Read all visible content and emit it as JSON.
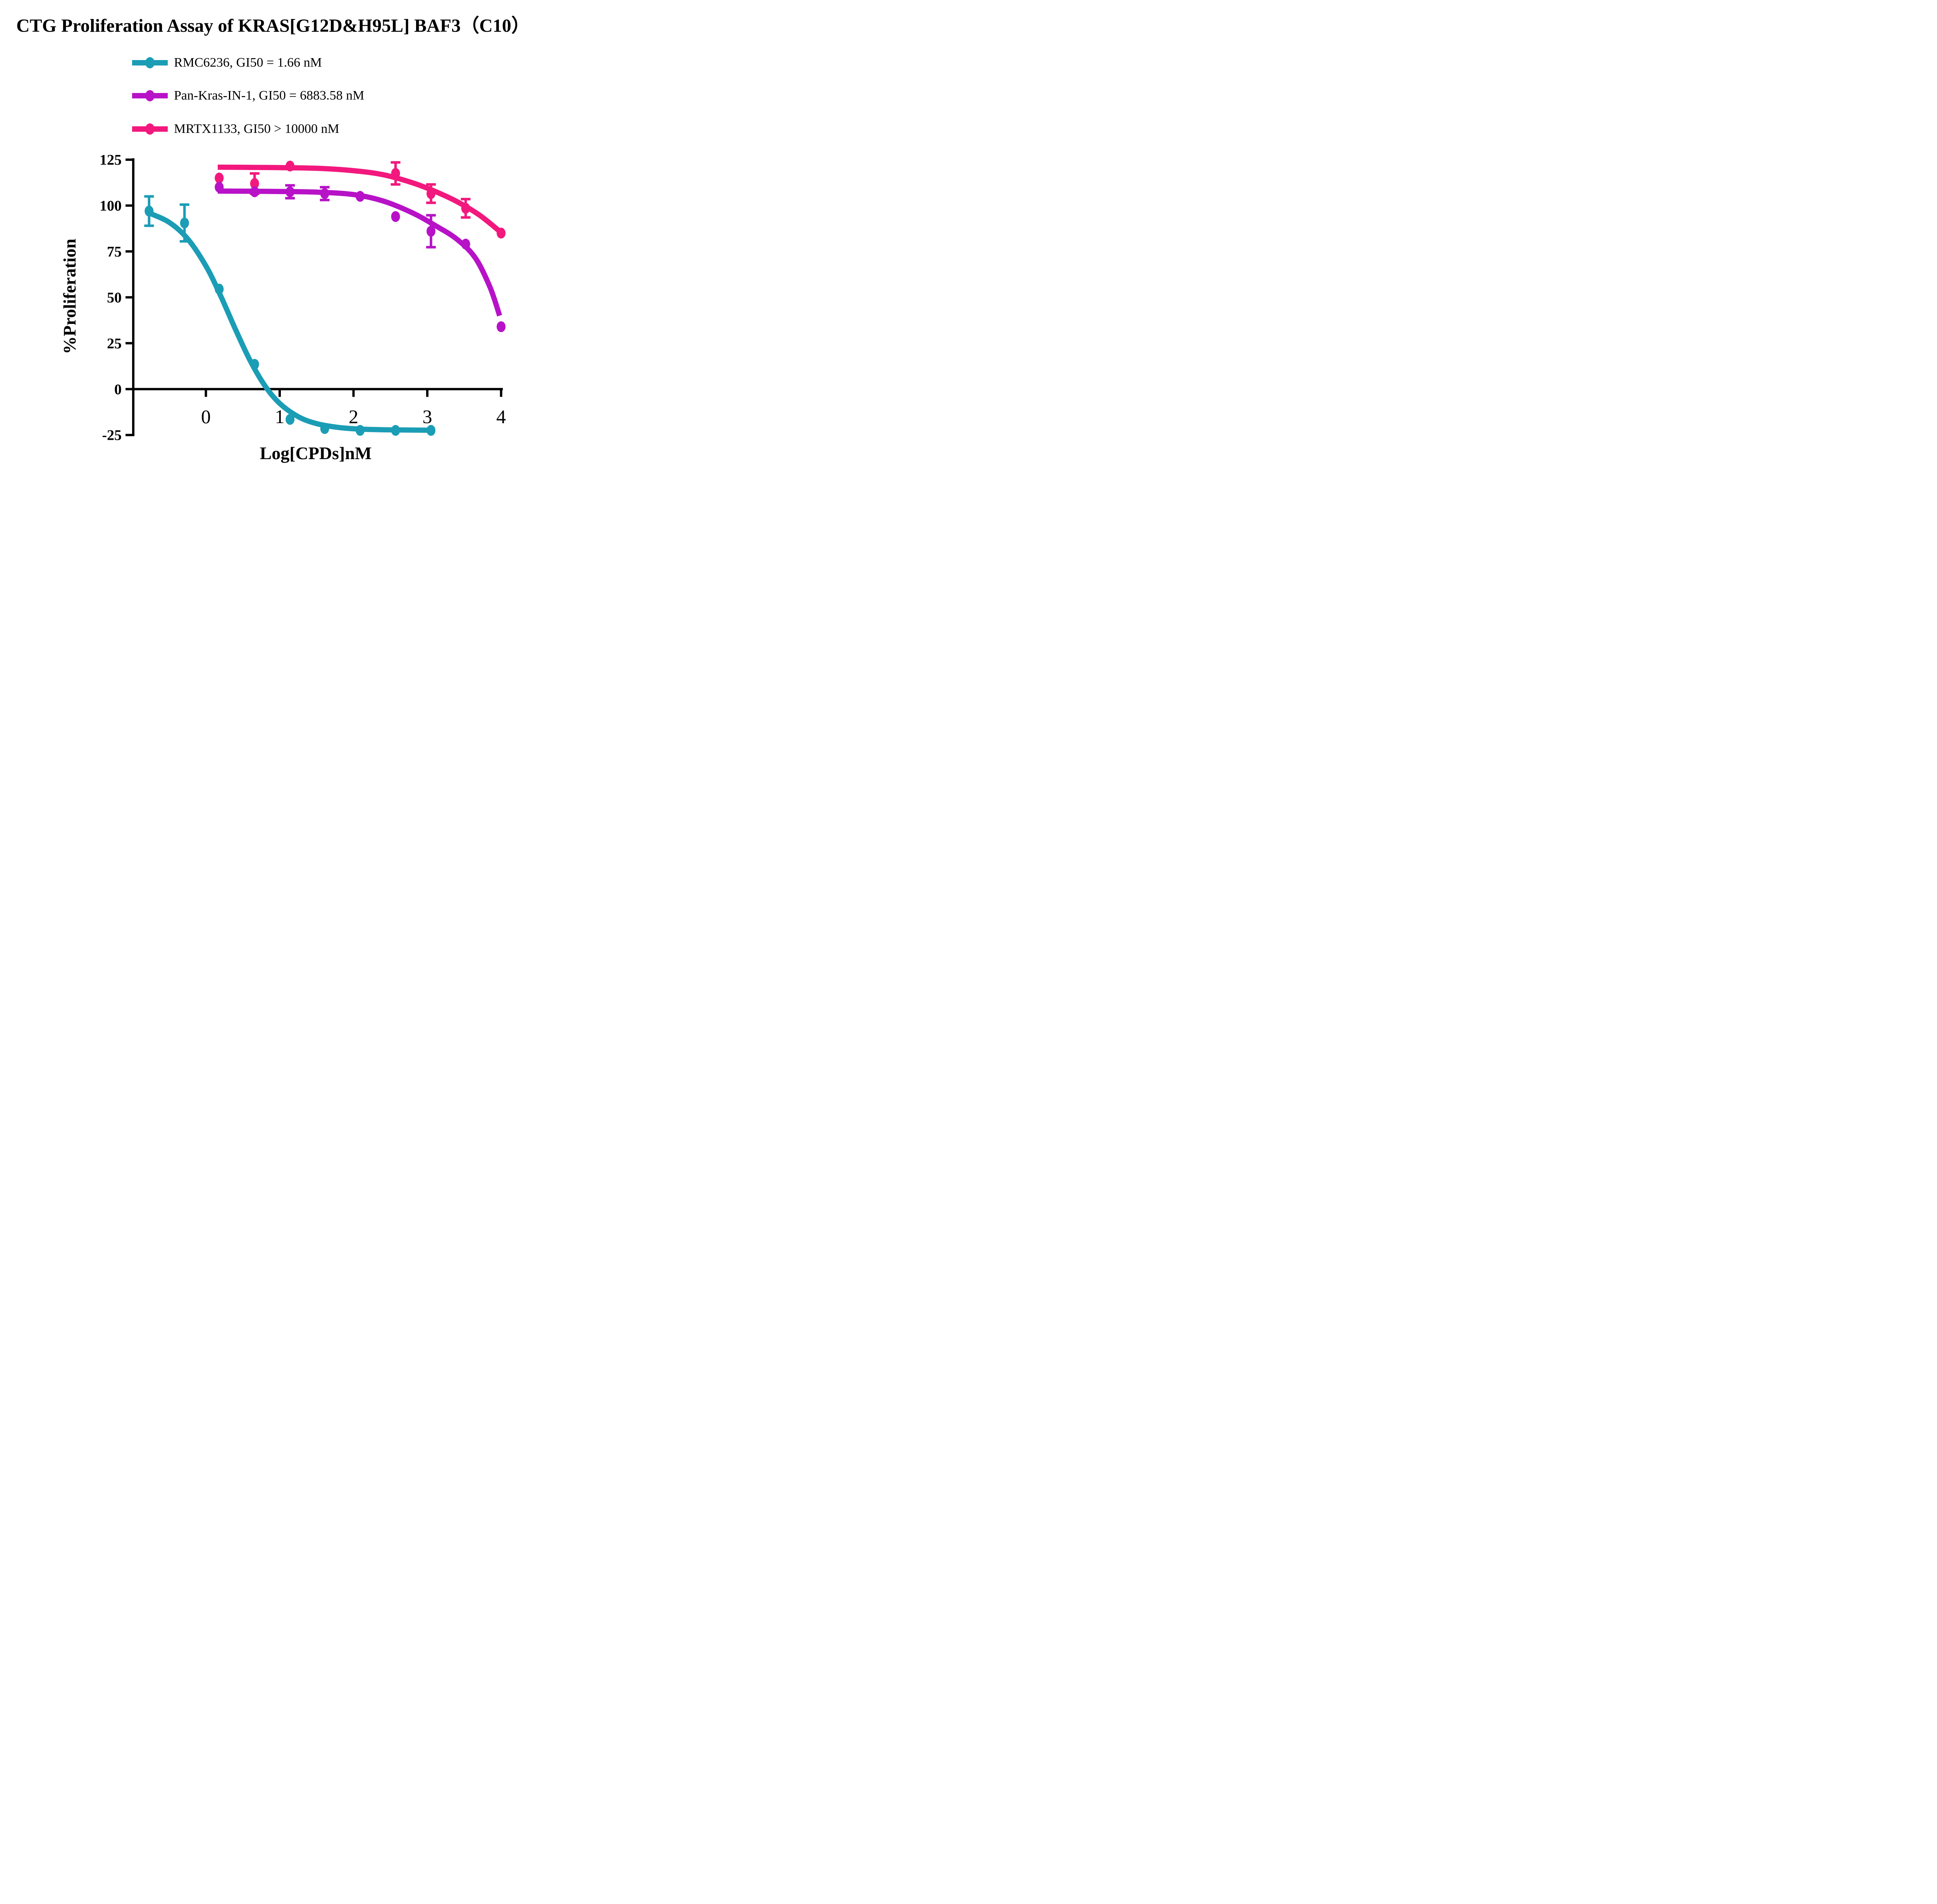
{
  "title": "CTG Proliferation Assay of KRAS[G12D&H95L] BAF3（C10）",
  "chart_data": {
    "type": "line",
    "title": "CTG Proliferation Assay of KRAS[G12D&H95L] BAF3（C10）",
    "xlabel": "Log[CPDs]nM",
    "ylabel": "%Proliferation",
    "xlim": [
      -1.0,
      4.0
    ],
    "ylim": [
      -25,
      125
    ],
    "x_ticks": [
      0,
      1,
      2,
      3,
      4
    ],
    "y_ticks": [
      125,
      100,
      75,
      50,
      25,
      0,
      -25
    ],
    "grid": false,
    "legend_position": "top-left",
    "series": [
      {
        "name": "RMC6236",
        "legend_label": "RMC6236, GI50 = 1.66 nM",
        "color": "#1B9DB5",
        "points": [
          {
            "x": -0.77,
            "y": 97,
            "err": 8
          },
          {
            "x": -0.29,
            "y": 90.5,
            "err": 10
          },
          {
            "x": 0.18,
            "y": 54.5
          },
          {
            "x": 0.66,
            "y": 13.5
          },
          {
            "x": 1.14,
            "y": -16.5
          },
          {
            "x": 1.61,
            "y": -21.5
          },
          {
            "x": 2.09,
            "y": -22.5
          },
          {
            "x": 2.57,
            "y": -22.5
          },
          {
            "x": 3.05,
            "y": -22.5
          }
        ],
        "curve": [
          [
            -0.78,
            96.1
          ],
          [
            -0.5,
            90.9
          ],
          [
            -0.25,
            82.0
          ],
          [
            0,
            67.1
          ],
          [
            0.2,
            50.8
          ],
          [
            0.4,
            32.6
          ],
          [
            0.6,
            15.5
          ],
          [
            0.8,
            1.8
          ],
          [
            1.0,
            -7.8
          ],
          [
            1.25,
            -15.0
          ],
          [
            1.5,
            -18.8
          ],
          [
            1.8,
            -20.9
          ],
          [
            2.1,
            -21.8
          ],
          [
            2.5,
            -22.2
          ],
          [
            3.07,
            -22.4
          ]
        ]
      },
      {
        "name": "Pan-Kras-IN-1",
        "legend_label": "Pan-Kras-IN-1, GI50 = 6883.58 nM",
        "color": "#B712C7",
        "points": [
          {
            "x": 0.18,
            "y": 110
          },
          {
            "x": 0.66,
            "y": 107.5
          },
          {
            "x": 1.14,
            "y": 107.5,
            "err": 3.5
          },
          {
            "x": 1.61,
            "y": 106.5,
            "err": 3.5
          },
          {
            "x": 2.09,
            "y": 105
          },
          {
            "x": 2.57,
            "y": 94
          },
          {
            "x": 3.05,
            "y": 86,
            "err": 8.7
          },
          {
            "x": 3.52,
            "y": 79
          },
          {
            "x": 4.0,
            "y": 34
          }
        ],
        "curve": [
          [
            0.16,
            107.9
          ],
          [
            0.9,
            107.7
          ],
          [
            1.5,
            107.3
          ],
          [
            2.0,
            106.0
          ],
          [
            2.4,
            102.5
          ],
          [
            2.8,
            96.0
          ],
          [
            3.1,
            89.3
          ],
          [
            3.4,
            81.7
          ],
          [
            3.65,
            71.5
          ],
          [
            3.85,
            55.5
          ],
          [
            3.98,
            40.0
          ]
        ]
      },
      {
        "name": "MRTX1133",
        "legend_label": "MRTX1133, GI50 > 10000 nM",
        "color": "#F2187D",
        "points": [
          {
            "x": 0.18,
            "y": 115
          },
          {
            "x": 0.66,
            "y": 112,
            "err": 5.5
          },
          {
            "x": 1.14,
            "y": 121.5
          },
          {
            "x": 2.57,
            "y": 117.5,
            "err": 6
          },
          {
            "x": 3.05,
            "y": 106.5,
            "err": 5
          },
          {
            "x": 3.52,
            "y": 98.5,
            "err": 5
          },
          {
            "x": 4.0,
            "y": 85
          }
        ],
        "curve": [
          [
            0.16,
            120.9
          ],
          [
            0.9,
            120.7
          ],
          [
            1.5,
            120.3
          ],
          [
            2.0,
            119.0
          ],
          [
            2.4,
            116.8
          ],
          [
            2.8,
            112.4
          ],
          [
            3.1,
            107.8
          ],
          [
            3.4,
            102.2
          ],
          [
            3.7,
            95.0
          ],
          [
            3.98,
            86.0
          ]
        ]
      }
    ]
  }
}
